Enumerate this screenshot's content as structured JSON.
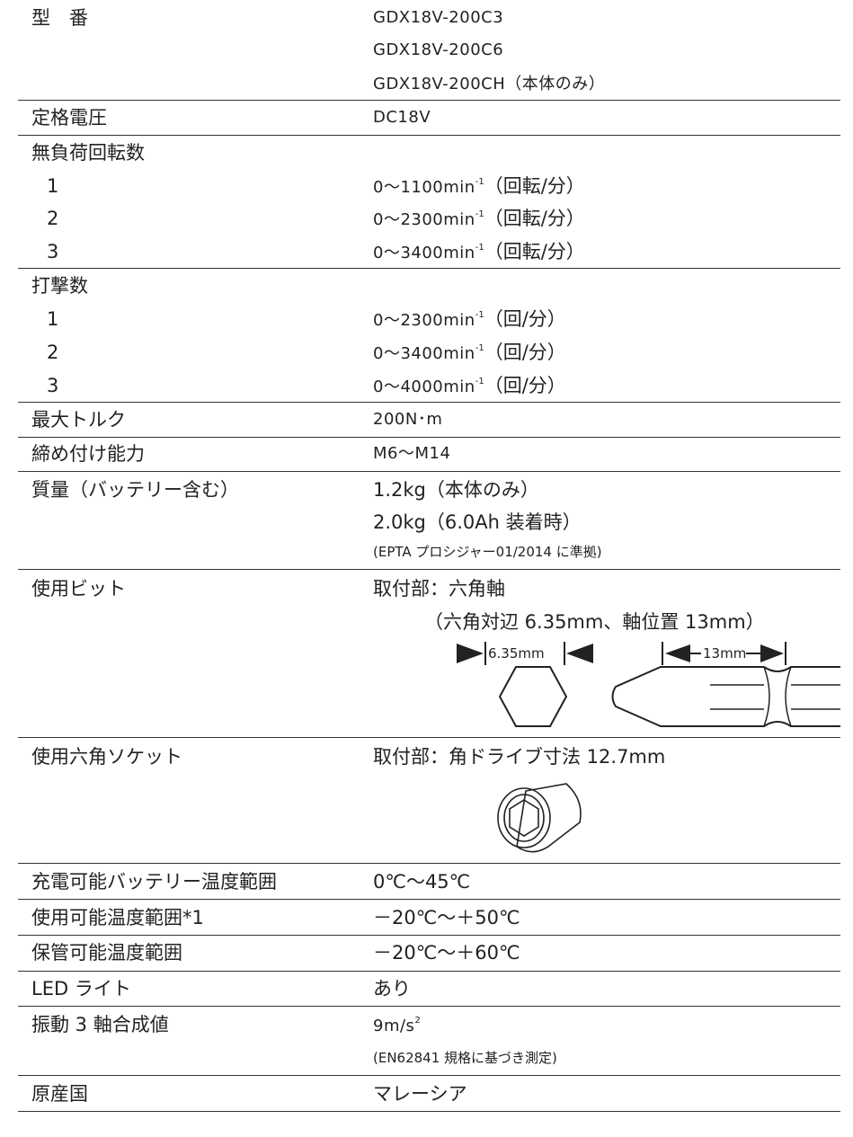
{
  "rows": [
    {
      "label": "型　番",
      "values": [
        "GDX18V-200C3",
        "GDX18V-200C6",
        "GDX18V-200CH（本体のみ）"
      ]
    },
    {
      "label": "定格電圧",
      "values": [
        "DC18V"
      ]
    },
    {
      "label": "無負荷回転数",
      "items": [
        {
          "name": "1",
          "value": "0～1100min",
          "sup": "-1",
          "unit": "（回転/分）"
        },
        {
          "name": "2",
          "value": "0～2300min",
          "sup": "-1",
          "unit": "（回転/分）"
        },
        {
          "name": "3",
          "value": "0～3400min",
          "sup": "-1",
          "unit": "（回転/分）"
        }
      ]
    },
    {
      "label": "打撃数",
      "items": [
        {
          "name": "1",
          "value": "0～2300min",
          "sup": "-1",
          "unit": "（回/分）"
        },
        {
          "name": "2",
          "value": "0～3400min",
          "sup": "-1",
          "unit": "（回/分）"
        },
        {
          "name": "3",
          "value": "0～4000min",
          "sup": "-1",
          "unit": "（回/分）"
        }
      ]
    },
    {
      "label": "最大トルク",
      "values": [
        "200N･m"
      ]
    },
    {
      "label": "締め付け能力",
      "values": [
        "M6～M14"
      ]
    },
    {
      "label": "質量（バッテリー含む）",
      "values": [
        "1.2kg（本体のみ）",
        "2.0kg（6.0Ah 装着時）"
      ],
      "note": "(EPTA プロシジャー01/2014 に準拠)"
    },
    {
      "label": "使用ビット",
      "values": [
        "取付部：六角軸",
        "（六角対辺 6.35mm、軸位置 13mm）"
      ],
      "dimensions": [
        "6.35mm",
        "13mm"
      ]
    },
    {
      "label": "使用六角ソケット",
      "values": [
        "取付部：角ドライブ寸法 12.7mm"
      ]
    },
    {
      "label": "充電可能バッテリー温度範囲",
      "values": [
        "0℃～45℃"
      ]
    },
    {
      "label": "使用可能温度範囲*1",
      "values": [
        "－20℃～＋50℃"
      ]
    },
    {
      "label": "保管可能温度範囲",
      "values": [
        "－20℃～＋60℃"
      ]
    },
    {
      "label": "LED ライト",
      "values": [
        "あり"
      ]
    },
    {
      "label": "振動 3 軸合成値",
      "value": "9m/s",
      "sup": "2",
      "note": "(EN62841 規格に基づき測定)"
    },
    {
      "label": "原産国",
      "values": [
        "マレーシア"
      ]
    }
  ]
}
